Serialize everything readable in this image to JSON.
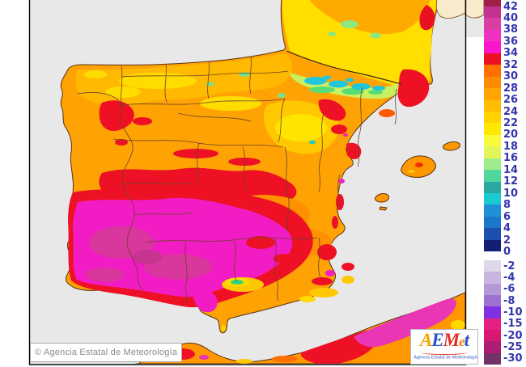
{
  "legend": {
    "label_color": "#3434AE",
    "upper_labels": [
      "42",
      "40",
      "38",
      "36",
      "34",
      "32",
      "30",
      "28",
      "26",
      "24",
      "22",
      "20",
      "18",
      "16",
      "14",
      "12",
      "10",
      "8",
      "6",
      "4",
      "2",
      "0"
    ],
    "upper_cells": [
      "#9E2048",
      "#C23390",
      "#DA3EA5",
      "#EF32C1",
      "#FB15CB",
      "#EE1126",
      "#FF7000",
      "#FF8C00",
      "#FFA400",
      "#FFBC00",
      "#FFD200",
      "#FFE800",
      "#FAFA3C",
      "#E2F65A",
      "#A0EC8C",
      "#50D69A",
      "#28A8A0",
      "#1ACAD0",
      "#2090D8",
      "#1A78CC",
      "#1C4FB0",
      "#141E74"
    ],
    "lower_labels": [
      "-2",
      "-4",
      "-6",
      "-8",
      "-10",
      "-15",
      "-20",
      "-25",
      "-30"
    ],
    "lower_cells": [
      "#DFD7EB",
      "#C9B6E0",
      "#B598D8",
      "#9F72D0",
      "#8030E0",
      "#E62082",
      "#D81870",
      "#AE1C74",
      "#713366"
    ]
  },
  "attribution": {
    "copyright": "© Agencia Estatal de Meteorología"
  },
  "logo": {
    "word": [
      {
        "ch": "A",
        "color": "#F7A600",
        "small": false
      },
      {
        "ch": "E",
        "color": "#2B50C8",
        "small": false
      },
      {
        "ch": "M",
        "color": "#E0301E",
        "small": false
      },
      {
        "ch": "e",
        "color": "#F07D00",
        "small": true
      },
      {
        "ch": "t",
        "color": "#2B50C8",
        "small": false
      }
    ],
    "subtitle": "Agencia Estatal de Meteorología"
  },
  "map_colors": {
    "sea": "#E8E8E8",
    "land_base": "#FFA304",
    "hot_region": "#F11CC4",
    "warm_red": "#EE1126",
    "cool_pyrenees": "#22C6DC",
    "no_data_land": "#F6ECCB"
  }
}
